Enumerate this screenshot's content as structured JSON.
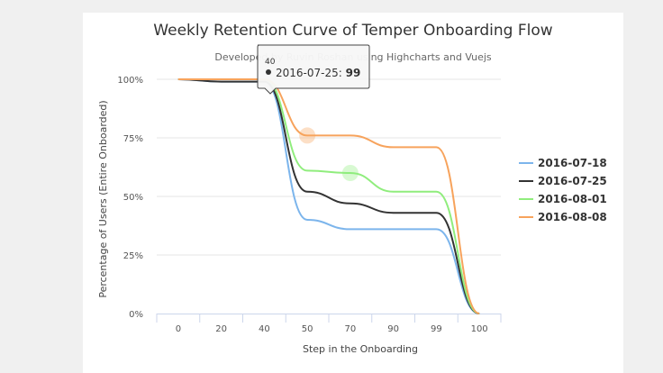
{
  "chart_data": {
    "type": "line",
    "title": "Weekly Retention Curve of Temper Onboarding Flow",
    "subtitle": "Developed by Ruvin Roshan using Highcharts and Vuejs",
    "xlabel": "Step in the Onboarding",
    "ylabel": "Percentage of Users (Entire Onboarded)",
    "categories": [
      "0",
      "20",
      "40",
      "50",
      "70",
      "90",
      "99",
      "100"
    ],
    "yticks": [
      "0%",
      "25%",
      "50%",
      "75%",
      "100%"
    ],
    "ylim": [
      0,
      100
    ],
    "grid": true,
    "legend_position": "right",
    "series": [
      {
        "name": "2016-07-18",
        "color": "#7cb5ec",
        "values": [
          100,
          99,
          99,
          40,
          36,
          36,
          36,
          0
        ]
      },
      {
        "name": "2016-07-25",
        "color": "#333333",
        "values": [
          100,
          99,
          99,
          52,
          47,
          43,
          43,
          0
        ]
      },
      {
        "name": "2016-08-01",
        "color": "#90ed7d",
        "values": [
          100,
          100,
          100,
          61,
          60,
          52,
          52,
          0
        ]
      },
      {
        "name": "2016-08-08",
        "color": "#f7a35c",
        "values": [
          100,
          100,
          100,
          76,
          76,
          71,
          71,
          0
        ]
      }
    ],
    "tooltip": {
      "header": "40",
      "series": "2016-07-25",
      "value": "99"
    }
  }
}
